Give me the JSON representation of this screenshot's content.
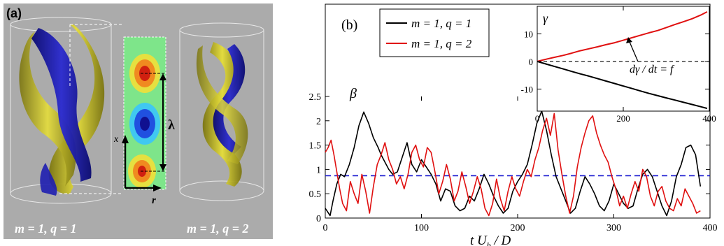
{
  "panel_a": {
    "label": "(a)",
    "caption_left": "m = 1, q = 1",
    "caption_right": "m = 1, q = 2",
    "axis_x": "x",
    "axis_r": "r",
    "lambda": "λ",
    "colors": {
      "background": "#ababab",
      "blue": "#1e1eb8",
      "yellow": "#c8c028",
      "slice_bg": "#7ee58a"
    }
  },
  "chart_data": [
    {
      "type": "line",
      "panel_label": "(b)",
      "xlabel": "t U_b / D",
      "ylabel": "β",
      "xlim": [
        0,
        400
      ],
      "ylim": [
        0,
        2.5
      ],
      "xticks": [
        0,
        100,
        200,
        300,
        400
      ],
      "yticks": [
        0,
        0.5,
        1,
        1.5,
        2,
        2.5
      ],
      "xtick_labels": [
        "0",
        "100",
        "200",
        "300",
        "400"
      ],
      "ytick_labels": [
        "0",
        "0.5",
        "1",
        "1.5",
        "2",
        "2.5"
      ],
      "legend_position": "top-left",
      "reference_line": {
        "y": 0.87,
        "style": "dashed",
        "color": "#1a1ad0"
      },
      "series": [
        {
          "name": "m = 1, q = 1",
          "color": "#000000",
          "x": [
            0,
            5,
            8,
            12,
            16,
            20,
            25,
            30,
            35,
            40,
            45,
            50,
            55,
            58,
            62,
            66,
            70,
            75,
            80,
            85,
            90,
            95,
            100,
            105,
            110,
            115,
            120,
            125,
            130,
            135,
            140,
            145,
            150,
            155,
            160,
            165,
            170,
            175,
            180,
            185,
            190,
            195,
            200,
            205,
            210,
            215,
            220,
            225,
            230,
            235,
            240,
            245,
            250,
            255,
            260,
            265,
            270,
            275,
            280,
            285,
            290,
            295,
            300,
            305,
            310,
            315,
            320,
            325,
            330,
            335,
            340,
            345,
            350,
            355,
            360,
            365,
            370,
            375,
            380,
            385,
            390
          ],
          "y": [
            0.2,
            0.05,
            0.35,
            0.7,
            0.9,
            0.85,
            1.1,
            1.45,
            1.9,
            2.18,
            1.95,
            1.65,
            1.45,
            1.3,
            1.15,
            1.0,
            0.9,
            0.95,
            1.25,
            1.55,
            1.1,
            0.95,
            1.2,
            1.05,
            0.9,
            0.7,
            0.35,
            0.6,
            0.55,
            0.25,
            0.15,
            0.2,
            0.45,
            0.35,
            0.6,
            0.9,
            0.7,
            0.45,
            0.25,
            0.1,
            0.2,
            0.55,
            0.75,
            0.9,
            1.1,
            1.5,
            1.95,
            2.2,
            1.8,
            1.3,
            0.85,
            0.6,
            0.35,
            0.1,
            0.2,
            0.55,
            0.85,
            0.7,
            0.5,
            0.25,
            0.15,
            0.35,
            0.7,
            0.5,
            0.3,
            0.2,
            0.25,
            0.6,
            0.9,
            1.0,
            0.85,
            0.55,
            0.25,
            0.05,
            0.35,
            0.85,
            1.1,
            1.45,
            1.5,
            1.3,
            0.65
          ]
        },
        {
          "name": "m = 1, q = 2",
          "color": "#e01010",
          "x": [
            0,
            3,
            6,
            9,
            12,
            15,
            18,
            22,
            26,
            30,
            34,
            38,
            42,
            46,
            50,
            54,
            58,
            62,
            66,
            70,
            74,
            78,
            82,
            86,
            90,
            94,
            98,
            102,
            106,
            110,
            114,
            118,
            122,
            126,
            130,
            134,
            138,
            142,
            146,
            150,
            154,
            158,
            162,
            166,
            170,
            174,
            178,
            182,
            186,
            190,
            194,
            198,
            202,
            206,
            210,
            214,
            218,
            222,
            226,
            230,
            234,
            238,
            242,
            246,
            250,
            254,
            258,
            262,
            266,
            270,
            274,
            278,
            282,
            286,
            290,
            294,
            298,
            302,
            306,
            310,
            314,
            318,
            322,
            326,
            330,
            334,
            338,
            342,
            346,
            350,
            354,
            358,
            362,
            366,
            370,
            374,
            378,
            382,
            386,
            390
          ],
          "y": [
            1.35,
            1.45,
            1.6,
            1.3,
            0.95,
            0.6,
            0.3,
            0.15,
            0.75,
            0.5,
            0.3,
            0.9,
            0.55,
            0.1,
            0.65,
            1.1,
            1.3,
            1.55,
            1.2,
            1.0,
            0.7,
            0.85,
            0.6,
            0.9,
            1.35,
            1.5,
            1.2,
            1.05,
            1.45,
            1.35,
            0.95,
            0.5,
            0.75,
            1.1,
            0.8,
            0.35,
            0.55,
            0.95,
            0.65,
            0.3,
            0.55,
            0.85,
            0.6,
            0.2,
            0.05,
            0.3,
            0.8,
            0.4,
            0.15,
            0.55,
            0.85,
            0.6,
            0.45,
            0.75,
            1.0,
            0.85,
            1.2,
            1.45,
            1.8,
            2.05,
            1.7,
            2.15,
            1.4,
            0.9,
            0.45,
            0.1,
            0.45,
            1.05,
            1.45,
            1.75,
            2.0,
            2.1,
            1.75,
            1.5,
            1.3,
            1.15,
            0.85,
            0.6,
            0.25,
            0.45,
            0.2,
            0.5,
            0.75,
            0.55,
            1.0,
            0.85,
            0.45,
            0.25,
            0.55,
            0.65,
            0.35,
            0.2,
            0.15,
            0.4,
            0.25,
            0.6,
            0.45,
            0.3,
            0.1,
            0.15
          ]
        }
      ]
    },
    {
      "type": "line",
      "inset": true,
      "ylabel": "γ",
      "xlim": [
        0,
        400
      ],
      "ylim": [
        -18,
        20
      ],
      "xticks": [
        0,
        200,
        400
      ],
      "yticks": [
        -10,
        0,
        10
      ],
      "xtick_labels": [
        "0",
        "200",
        "400"
      ],
      "ytick_labels": [
        "-10",
        "0",
        "10"
      ],
      "annotation": "dγ / dt = f",
      "reference_line": {
        "y": 0,
        "style": "dashed",
        "color": "#000000"
      },
      "series": [
        {
          "color": "#e01010",
          "x": [
            0,
            20,
            40,
            60,
            80,
            100,
            120,
            140,
            160,
            180,
            200,
            220,
            240,
            260,
            280,
            300,
            320,
            340,
            360,
            380,
            395
          ],
          "y": [
            0,
            0.8,
            1.5,
            2.2,
            3.0,
            3.9,
            4.6,
            5.3,
            6.1,
            6.8,
            7.7,
            8.6,
            9.5,
            10.4,
            11.2,
            12.3,
            13.4,
            14.4,
            15.5,
            16.8,
            18.0
          ]
        },
        {
          "color": "#000000",
          "x": [
            0,
            20,
            40,
            60,
            80,
            100,
            120,
            140,
            160,
            180,
            200,
            220,
            240,
            260,
            280,
            300,
            320,
            340,
            360,
            380,
            395
          ],
          "y": [
            0,
            -0.9,
            -1.8,
            -2.7,
            -3.6,
            -4.5,
            -5.3,
            -6.2,
            -7.1,
            -8.0,
            -8.9,
            -9.8,
            -10.7,
            -11.6,
            -12.4,
            -13.2,
            -14.0,
            -14.8,
            -15.6,
            -16.4,
            -17.0
          ]
        }
      ]
    }
  ]
}
